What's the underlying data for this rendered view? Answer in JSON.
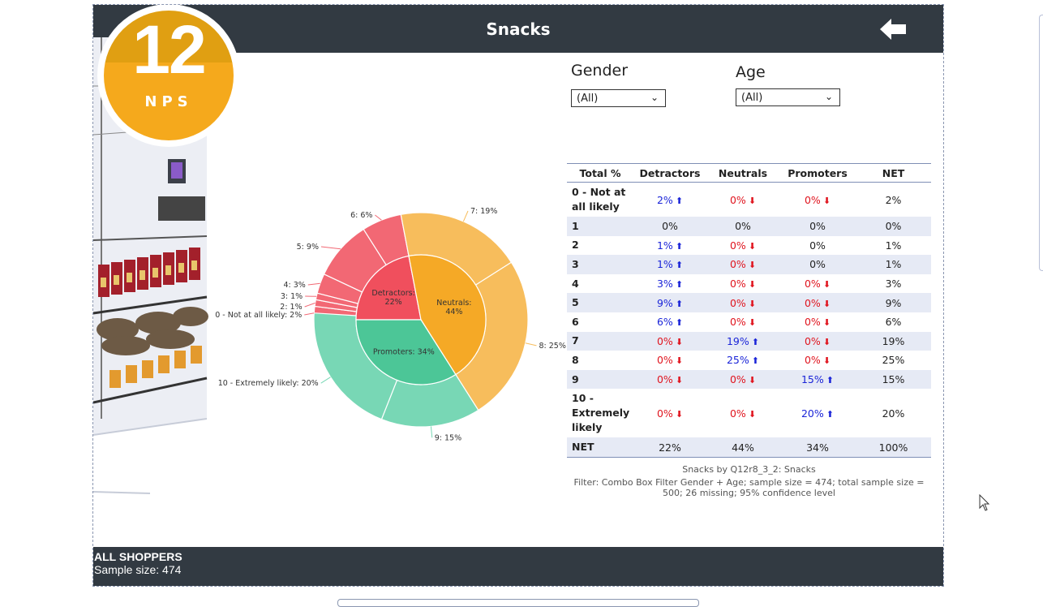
{
  "header": {
    "title": "Snacks"
  },
  "badge": {
    "score": "12",
    "label": "NPS"
  },
  "filters": {
    "gender": {
      "label": "Gender",
      "value": "(All)"
    },
    "age": {
      "label": "Age",
      "value": "(All)"
    }
  },
  "colors": {
    "detractors_inner": "#f04f5d",
    "detractors_outer": "#f26874",
    "neutrals_inner": "#f5a926",
    "neutrals_outer": "#f7bd5c",
    "promoters_inner": "#4cc697",
    "promoters_outer": "#78d7b5",
    "bar": "#323a42",
    "accent": "#f5a91c"
  },
  "chart_data": {
    "type": "pie",
    "subtype": "sunburst",
    "inner": [
      {
        "label": "Detractors: 22%",
        "group": "Detractors",
        "value": 22
      },
      {
        "label": "Neutrals: 44%",
        "group": "Neutrals",
        "value": 44
      },
      {
        "label": "Promoters: 34%",
        "group": "Promoters",
        "value": 34
      }
    ],
    "outer": [
      {
        "label": "0 - Not at all likely: 2%",
        "group": "Detractors",
        "value": 2
      },
      {
        "label": "2: 1%",
        "group": "Detractors",
        "value": 1
      },
      {
        "label": "3: 1%",
        "group": "Detractors",
        "value": 1
      },
      {
        "label": "4: 3%",
        "group": "Detractors",
        "value": 3
      },
      {
        "label": "5: 9%",
        "group": "Detractors",
        "value": 9
      },
      {
        "label": "6: 6%",
        "group": "Detractors",
        "value": 6
      },
      {
        "label": "7: 19%",
        "group": "Neutrals",
        "value": 19
      },
      {
        "label": "8: 25%",
        "group": "Neutrals",
        "value": 25
      },
      {
        "label": "9: 15%",
        "group": "Promoters",
        "value": 15
      },
      {
        "label": "10 - Extremely likely: 20%",
        "group": "Promoters",
        "value": 20
      }
    ]
  },
  "table": {
    "headers": [
      "Total %",
      "Detractors",
      "Neutrals",
      "Promoters",
      "NET"
    ],
    "rows": [
      {
        "label": "0 - Not at all likely",
        "cells": [
          {
            "v": "2%",
            "d": "up"
          },
          {
            "v": "0%",
            "d": "down"
          },
          {
            "v": "0%",
            "d": "down"
          },
          {
            "v": "2%",
            "d": ""
          }
        ]
      },
      {
        "label": "1",
        "cells": [
          {
            "v": "0%",
            "d": ""
          },
          {
            "v": "0%",
            "d": ""
          },
          {
            "v": "0%",
            "d": ""
          },
          {
            "v": "0%",
            "d": ""
          }
        ]
      },
      {
        "label": "2",
        "cells": [
          {
            "v": "1%",
            "d": "up"
          },
          {
            "v": "0%",
            "d": "down"
          },
          {
            "v": "0%",
            "d": ""
          },
          {
            "v": "1%",
            "d": ""
          }
        ]
      },
      {
        "label": "3",
        "cells": [
          {
            "v": "1%",
            "d": "up"
          },
          {
            "v": "0%",
            "d": "down"
          },
          {
            "v": "0%",
            "d": ""
          },
          {
            "v": "1%",
            "d": ""
          }
        ]
      },
      {
        "label": "4",
        "cells": [
          {
            "v": "3%",
            "d": "up"
          },
          {
            "v": "0%",
            "d": "down"
          },
          {
            "v": "0%",
            "d": "down"
          },
          {
            "v": "3%",
            "d": ""
          }
        ]
      },
      {
        "label": "5",
        "cells": [
          {
            "v": "9%",
            "d": "up"
          },
          {
            "v": "0%",
            "d": "down"
          },
          {
            "v": "0%",
            "d": "down"
          },
          {
            "v": "9%",
            "d": ""
          }
        ]
      },
      {
        "label": "6",
        "cells": [
          {
            "v": "6%",
            "d": "up"
          },
          {
            "v": "0%",
            "d": "down"
          },
          {
            "v": "0%",
            "d": "down"
          },
          {
            "v": "6%",
            "d": ""
          }
        ]
      },
      {
        "label": "7",
        "cells": [
          {
            "v": "0%",
            "d": "down"
          },
          {
            "v": "19%",
            "d": "up"
          },
          {
            "v": "0%",
            "d": "down"
          },
          {
            "v": "19%",
            "d": ""
          }
        ]
      },
      {
        "label": "8",
        "cells": [
          {
            "v": "0%",
            "d": "down"
          },
          {
            "v": "25%",
            "d": "up"
          },
          {
            "v": "0%",
            "d": "down"
          },
          {
            "v": "25%",
            "d": ""
          }
        ]
      },
      {
        "label": "9",
        "cells": [
          {
            "v": "0%",
            "d": "down"
          },
          {
            "v": "0%",
            "d": "down"
          },
          {
            "v": "15%",
            "d": "up"
          },
          {
            "v": "15%",
            "d": ""
          }
        ]
      },
      {
        "label": "10 - Extremely likely",
        "cells": [
          {
            "v": "0%",
            "d": "down"
          },
          {
            "v": "0%",
            "d": "down"
          },
          {
            "v": "20%",
            "d": "up"
          },
          {
            "v": "20%",
            "d": ""
          }
        ]
      },
      {
        "label": "NET",
        "cells": [
          {
            "v": "22%",
            "d": ""
          },
          {
            "v": "44%",
            "d": ""
          },
          {
            "v": "34%",
            "d": ""
          },
          {
            "v": "100%",
            "d": ""
          }
        ]
      }
    ]
  },
  "footnote": {
    "line1": "Snacks by Q12r8_3_2: Snacks",
    "line2": "Filter: Combo Box Filter Gender + Age; sample size = 474; total sample size = 500; 26 missing; 95% confidence level"
  },
  "bottom": {
    "title": "ALL SHOPPERS",
    "sample": "Sample size: 474"
  }
}
